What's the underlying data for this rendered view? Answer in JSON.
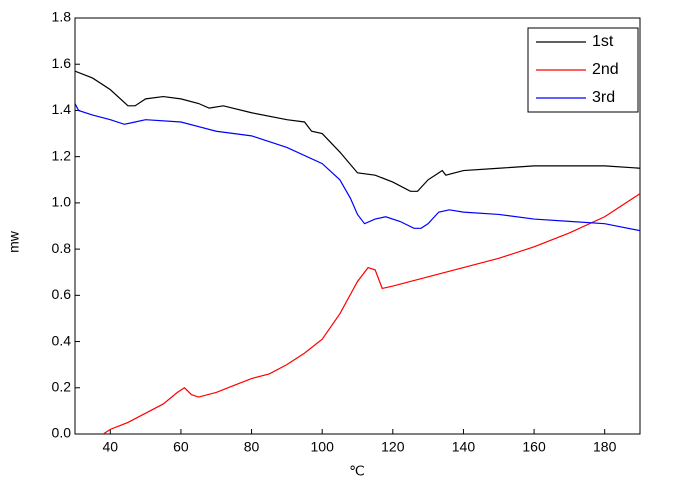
{
  "chart_data": {
    "type": "line",
    "xlabel": "℃",
    "ylabel": "mw",
    "xlim": [
      30,
      190
    ],
    "ylim": [
      0,
      1.8
    ],
    "xticks": [
      40,
      60,
      80,
      100,
      120,
      140,
      160,
      180
    ],
    "yticks": [
      {
        "value": 0,
        "label": "0.0"
      },
      {
        "value": 0.2,
        "label": "0.2"
      },
      {
        "value": 0.4,
        "label": "0.4"
      },
      {
        "value": 0.6,
        "label": "0.6"
      },
      {
        "value": 0.8,
        "label": "0.8"
      },
      {
        "value": 1.0,
        "label": "1.0"
      },
      {
        "value": 1.2,
        "label": "1.2"
      },
      {
        "value": 1.4,
        "label": "1.4"
      },
      {
        "value": 1.6,
        "label": "1.6"
      },
      {
        "value": 1.8,
        "label": "1.8"
      }
    ],
    "legend": "upper right",
    "series": [
      {
        "name": "1st",
        "color": "#000000",
        "x": [
          30,
          35,
          40,
          45,
          47,
          50,
          55,
          60,
          65,
          68,
          72,
          80,
          90,
          95,
          97,
          100,
          105,
          110,
          115,
          120,
          125,
          127,
          130,
          133,
          134,
          135,
          140,
          150,
          160,
          170,
          180,
          190
        ],
        "values": [
          1.57,
          1.54,
          1.49,
          1.42,
          1.42,
          1.45,
          1.46,
          1.45,
          1.43,
          1.41,
          1.42,
          1.39,
          1.36,
          1.35,
          1.31,
          1.3,
          1.22,
          1.13,
          1.12,
          1.09,
          1.05,
          1.05,
          1.1,
          1.13,
          1.14,
          1.12,
          1.14,
          1.15,
          1.16,
          1.16,
          1.16,
          1.15
        ]
      },
      {
        "name": "2nd",
        "color": "#ff0000",
        "x": [
          38,
          40,
          45,
          50,
          55,
          59,
          61,
          63,
          65,
          70,
          75,
          80,
          85,
          90,
          95,
          100,
          105,
          110,
          113,
          115,
          117,
          120,
          130,
          140,
          150,
          160,
          170,
          180,
          190
        ],
        "values": [
          0.0,
          0.02,
          0.05,
          0.09,
          0.13,
          0.18,
          0.2,
          0.17,
          0.16,
          0.18,
          0.21,
          0.24,
          0.26,
          0.3,
          0.35,
          0.41,
          0.52,
          0.66,
          0.72,
          0.71,
          0.63,
          0.64,
          0.68,
          0.72,
          0.76,
          0.81,
          0.87,
          0.94,
          1.04
        ]
      },
      {
        "name": "3rd",
        "color": "#0000ff",
        "x": [
          30,
          31,
          35,
          40,
          44,
          47,
          50,
          60,
          70,
          80,
          90,
          100,
          105,
          108,
          110,
          112,
          115,
          118,
          122,
          126,
          128,
          130,
          133,
          136,
          140,
          150,
          160,
          170,
          180,
          190
        ],
        "values": [
          1.43,
          1.4,
          1.38,
          1.36,
          1.34,
          1.35,
          1.36,
          1.35,
          1.31,
          1.29,
          1.24,
          1.17,
          1.1,
          1.02,
          0.95,
          0.91,
          0.93,
          0.94,
          0.92,
          0.89,
          0.89,
          0.91,
          0.96,
          0.97,
          0.96,
          0.95,
          0.93,
          0.92,
          0.91,
          0.88
        ]
      }
    ]
  }
}
